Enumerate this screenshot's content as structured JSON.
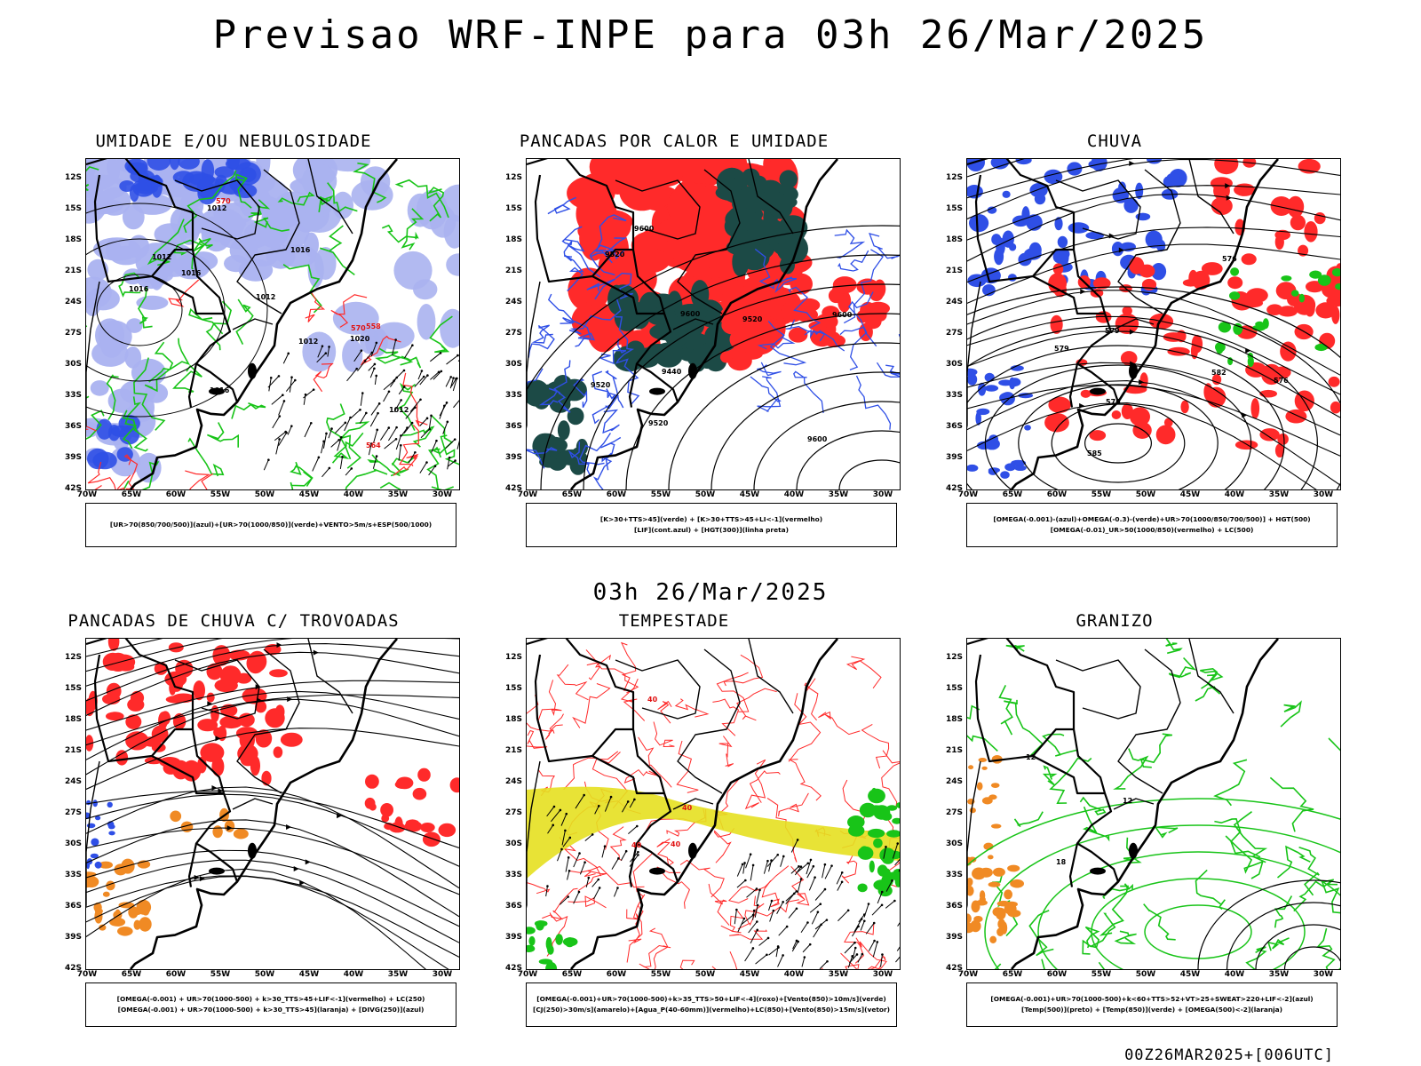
{
  "title": "Previsao WRF-INPE  para 03h 26/Mar/2025",
  "mid_label": "03h 26/Mar/2025",
  "footer": "00Z26MAR2025+[006UTC]",
  "axes": {
    "lat_labels": [
      "12S",
      "15S",
      "18S",
      "21S",
      "24S",
      "27S",
      "30S",
      "33S",
      "36S",
      "39S",
      "42S"
    ],
    "lon_labels": [
      "70W",
      "65W",
      "60W",
      "55W",
      "50W",
      "45W",
      "40W",
      "35W",
      "30W"
    ]
  },
  "colors": {
    "blue": "#2f4fe6",
    "lightblue": "#aab2f0",
    "green": "#18c418",
    "red": "#ff2a2a",
    "darkgreen": "#1c4a46",
    "orange": "#f08a24",
    "yellow": "#e6e020",
    "violet": "#9a9af0"
  },
  "panels": [
    {
      "title": "UMIDADE E/OU NEBULOSIDADE",
      "legend": [
        "[UR>70(850/700/500)](azul)+[UR>70(1000/850)](verde)+VENTO>5m/s+ESP(500/1000)"
      ],
      "labels": [
        "1016",
        "1012",
        "1012",
        "1012",
        "1016",
        "1016",
        "1016",
        "1012",
        "1012",
        "1020",
        "570",
        "570",
        "564",
        "558"
      ]
    },
    {
      "title": "PANCADAS POR CALOR E UMIDADE",
      "legend": [
        "[K>30+TTS>45](verde) + [K>30+TTS>45+LI<-1](vermelho)",
        "[LIF](cont.azul) + [HGT(300)](linha preta)"
      ],
      "labels": [
        "9600",
        "9600",
        "9600",
        "9600",
        "9520",
        "9520",
        "9520",
        "9520",
        "9440"
      ]
    },
    {
      "title": "CHUVA",
      "legend": [
        "[OMEGA(-0.001)-(azul)+OMEGA(-0.3)-(verde)+UR>70(1000/850/700/500)] + HGT(500)",
        "[OMEGA(-0.01)_UR>50(1000/850)(vermelho) + LC(500)"
      ],
      "labels": [
        "585",
        "582",
        "579",
        "576",
        "576",
        "576",
        "579"
      ]
    },
    {
      "title": "PANCADAS DE CHUVA C/ TROVOADAS",
      "legend": [
        "[OMEGA(-0.001) + UR>70(1000-500) + k>30_TTS>45+LIF<-1](vermelho) + LC(250)",
        "[OMEGA(-0.001) + UR>70(1000-500) + k>30_TTS>45](laranja) + [DIVG(250)](azul)"
      ],
      "labels": []
    },
    {
      "title": "TEMPESTADE",
      "legend": [
        "[OMEGA(-0.001)+UR>70(1000-500)+k>35_TTS>50+LIF<-4](roxo)+[Vento(850)>10m/s](verde)",
        "[CJ(250)>30m/s](amarelo)+[Agua_P(40-60mm)](vermelho)+LC(850)+[Vento(850)>15m/s](vetor)"
      ],
      "labels": [
        "40",
        "40",
        "40",
        "40"
      ]
    },
    {
      "title": "GRANIZO",
      "legend": [
        "[OMEGA(-0.001)+UR>70(1000-500)+k<60+TTS>52+VT>25+SWEAT>220+LIF<-2](azul)",
        "[Temp(500)](preto) + [Temp(850)](verde) + [OMEGA(500)<-2](laranja)"
      ],
      "labels": [
        "12",
        "12",
        "18"
      ]
    }
  ]
}
